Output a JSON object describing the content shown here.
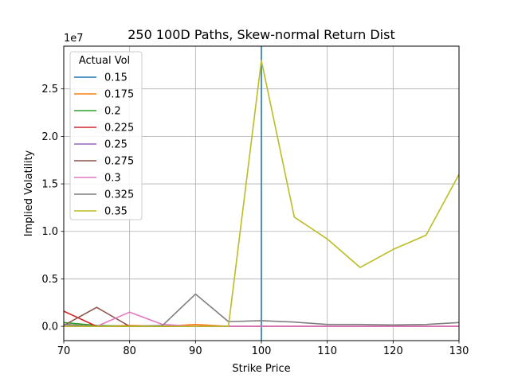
{
  "chart_data": {
    "type": "line",
    "title": "250 100D Paths, Skew-normal Return Dist",
    "xlabel": "Strike Price",
    "ylabel": "Implied Volatility",
    "y_offset_label": "1e7",
    "xlim": [
      70,
      130
    ],
    "ylim": [
      -0.15,
      2.95
    ],
    "x_ticks": [
      70,
      80,
      90,
      100,
      110,
      120,
      130
    ],
    "y_ticks": [
      0.0,
      0.5,
      1.0,
      1.5,
      2.0,
      2.5
    ],
    "y_tick_labels": [
      "0.0",
      "0.5",
      "1.0",
      "1.5",
      "2.0",
      "2.5"
    ],
    "grid": true,
    "legend": {
      "title": "Actual Vol",
      "placement": "upper-left"
    },
    "x": [
      70,
      75,
      80,
      85,
      90,
      95,
      100,
      105,
      110,
      115,
      120,
      125,
      130
    ],
    "series": [
      {
        "name": "0.15",
        "color": "#1f77b4",
        "segments": [
          [
            [
              100,
              -0.15
            ],
            [
              100,
              2.95
            ]
          ]
        ]
      },
      {
        "name": "0.175",
        "color": "#ff7f0e",
        "values": [
          0.02,
          0.0,
          0.01,
          0.0,
          0.02,
          0.0,
          0.0,
          0.0,
          0.0,
          0.0,
          0.0,
          0.0,
          0.0
        ]
      },
      {
        "name": "0.2",
        "color": "#2ca02c",
        "values": [
          0.04,
          0.01,
          0.0,
          0.0,
          0.0,
          0.0,
          0.0,
          0.0,
          0.0,
          0.0,
          0.0,
          0.0,
          0.0
        ]
      },
      {
        "name": "0.225",
        "color": "#d62728",
        "values": [
          0.16,
          0.0,
          0.0,
          0.0,
          0.0,
          0.0,
          0.0,
          0.0,
          0.0,
          0.0,
          0.0,
          0.0,
          0.0
        ]
      },
      {
        "name": "0.25",
        "color": "#9467bd",
        "values": [
          0.0,
          0.0,
          0.0,
          0.0,
          0.0,
          0.0,
          0.0,
          0.0,
          0.0,
          0.0,
          0.0,
          0.0,
          0.0
        ]
      },
      {
        "name": "0.275",
        "color": "#8c564b",
        "values": [
          0.01,
          0.2,
          0.0,
          0.0,
          0.0,
          0.0,
          0.0,
          0.0,
          0.0,
          0.0,
          0.0,
          0.0,
          0.0
        ]
      },
      {
        "name": "0.3",
        "color": "#e377c2",
        "values": [
          0.0,
          0.0,
          0.15,
          0.02,
          0.0,
          0.0,
          0.0,
          0.0,
          0.0,
          0.0,
          0.0,
          0.0,
          0.0
        ]
      },
      {
        "name": "0.325",
        "color": "#7f7f7f",
        "values": [
          0.02,
          0.0,
          0.0,
          0.01,
          0.34,
          0.05,
          0.06,
          0.045,
          0.02,
          0.02,
          0.015,
          0.02,
          0.04
        ]
      },
      {
        "name": "0.35",
        "color": "#bcbd22",
        "values": [
          0.0,
          0.0,
          0.0,
          0.0,
          0.0,
          0.0,
          2.8,
          1.15,
          0.92,
          0.62,
          0.81,
          0.96,
          1.6
        ]
      }
    ]
  }
}
